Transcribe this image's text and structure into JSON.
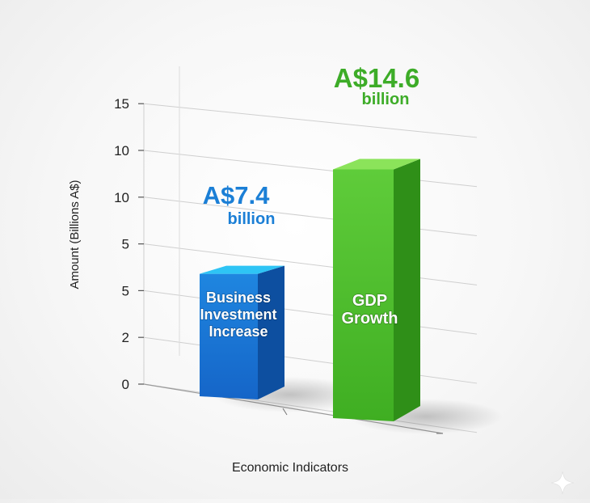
{
  "chart_data": {
    "type": "bar",
    "title": "",
    "xlabel": "Economic Indicators",
    "ylabel": "Amount (Billions A$)",
    "y_tick_labels": [
      "0",
      "2",
      "5",
      "5",
      "10",
      "10",
      "15"
    ],
    "ylim": [
      0,
      15
    ],
    "grid": true,
    "legend": "none",
    "categories": [
      "Business Investment Increase",
      "GDP Growth"
    ],
    "category_lines": [
      [
        "Business",
        "Investment",
        "Increase"
      ],
      [
        "GDP",
        "Growth"
      ]
    ],
    "values": [
      7.4,
      14.6
    ],
    "value_labels": [
      {
        "amount": "A$7.4",
        "unit": "billion"
      },
      {
        "amount": "A$14.6",
        "unit": "billion"
      }
    ],
    "colors": {
      "bar1_front_top": "#1f86e0",
      "bar1_front_bottom": "#1565c8",
      "bar1_side": "#0d4fa0",
      "bar1_top": "#2ec4f5",
      "bar1_label": "#1b7fd6",
      "bar2_front_top": "#5fcc3a",
      "bar2_front_bottom": "#3fae22",
      "bar2_side": "#2f8f18",
      "bar2_top": "#8be35a",
      "bar2_label": "#3dac28",
      "axis_text": "#222222",
      "grid": "#cfcfcf"
    }
  }
}
